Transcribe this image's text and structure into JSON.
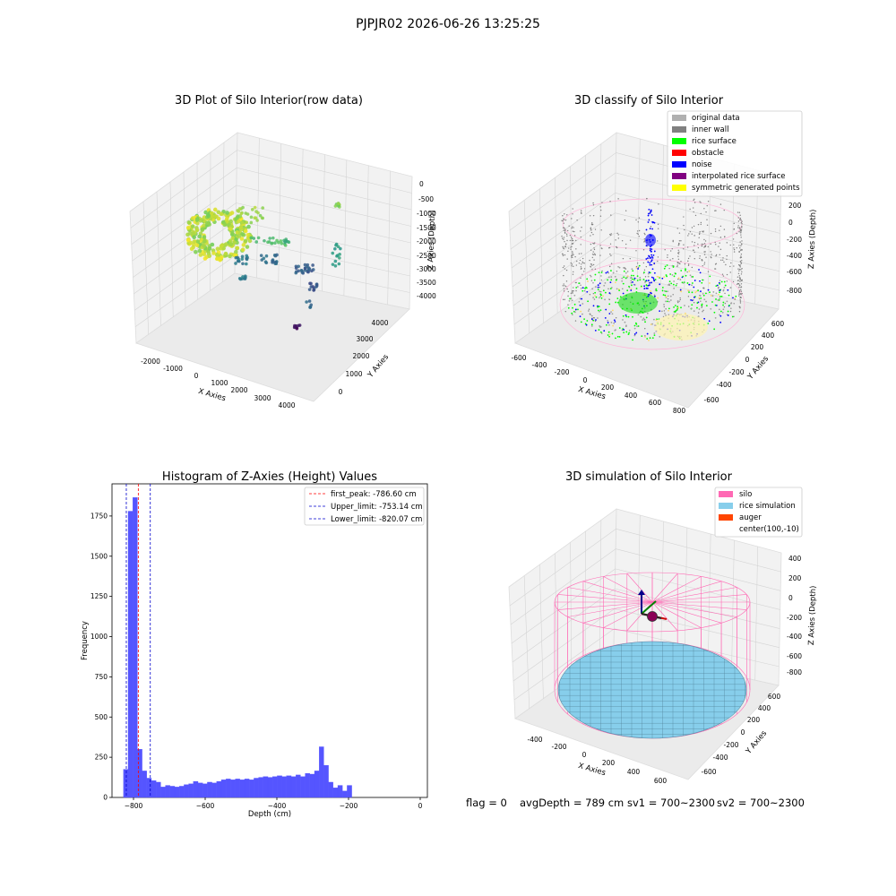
{
  "suptitle": "PJPJR02 2026-06-26 13:25:25",
  "status": {
    "flag": "flag = 0",
    "avg_depth": "avgDepth = 789 cm",
    "sv1": "sv1 = 700~2300",
    "sv2": "sv2 = 700~2300"
  },
  "colors": {
    "hist_bar": "#5555ff",
    "peak_line": "#ff0000",
    "limit_line": "#0000cc",
    "silo": "#ff69b4",
    "rice_sim": "#87ceeb",
    "auger": "#ff4500"
  },
  "chart_data": [
    {
      "type": "scatter3d",
      "title": "3D Plot of Silo Interior(row data)",
      "xlabel": "X Axies",
      "ylabel": "Y Axies",
      "zlabel": "Z Axies (Depth)",
      "x_ticks": [
        "-2000",
        "-1000",
        "0",
        "1000",
        "2000",
        "3000",
        "4000"
      ],
      "y_ticks": [
        "0",
        "1000",
        "2000",
        "3000",
        "4000"
      ],
      "z_ticks": [
        "0",
        "-500",
        "-1000",
        "-1500",
        "-2000",
        "-2500",
        "-3000",
        "-3500",
        "-4000"
      ],
      "xlim": [
        -2500,
        4500
      ],
      "ylim": [
        -500,
        4500
      ],
      "zlim": [
        -4300,
        200
      ],
      "colormap": "viridis"
    },
    {
      "type": "scatter3d",
      "title": "3D classify of Silo Interior",
      "xlabel": "X Axies",
      "ylabel": "Y Axies",
      "zlabel": "Z Axies (Depth)",
      "x_ticks": [
        "-600",
        "-400",
        "-200",
        "0",
        "200",
        "400",
        "600",
        "800"
      ],
      "y_ticks": [
        "-600",
        "-400",
        "-200",
        "0",
        "200",
        "400",
        "600"
      ],
      "z_ticks": [
        "200",
        "0",
        "-200",
        "-400",
        "-600",
        "-800"
      ],
      "legend": [
        {
          "label": "original data",
          "color": "#b0b0b0"
        },
        {
          "label": "inner wall",
          "color": "#808080"
        },
        {
          "label": "rice surface",
          "color": "#00ff00"
        },
        {
          "label": "obstacle",
          "color": "#ff0000"
        },
        {
          "label": "noise",
          "color": "#0000ff"
        },
        {
          "label": "interpolated rice surface",
          "color": "#800080"
        },
        {
          "label": "symmetric generated points",
          "color": "#ffff00"
        }
      ],
      "legend_loc": "upper right"
    },
    {
      "type": "bar",
      "title": "Histogram of Z-Axies (Height) Values",
      "xlabel": "Depth (cm)",
      "ylabel": "Frequency",
      "xlim": [
        -860,
        20
      ],
      "ylim": [
        0,
        1950
      ],
      "x_ticks": [
        -800,
        -600,
        -400,
        -200,
        0
      ],
      "y_ticks": [
        0,
        250,
        500,
        750,
        1000,
        1250,
        1500,
        1750
      ],
      "bin_start": -828,
      "bin_width": 13,
      "values": [
        175,
        1780,
        1865,
        300,
        165,
        120,
        105,
        95,
        65,
        75,
        70,
        65,
        70,
        80,
        85,
        100,
        90,
        85,
        95,
        90,
        100,
        110,
        115,
        110,
        115,
        110,
        115,
        110,
        120,
        125,
        130,
        125,
        130,
        135,
        130,
        135,
        130,
        140,
        130,
        150,
        145,
        165,
        315,
        200,
        95,
        60,
        75,
        40,
        75
      ],
      "vlines": [
        {
          "x": -786.6,
          "label": "first_peak: -786.60 cm",
          "color": "#ff0000"
        },
        {
          "x": -753.14,
          "label": "Upper_limit: -753.14 cm",
          "color": "#0000cc"
        },
        {
          "x": -820.07,
          "label": "Lower_limit: -820.07 cm",
          "color": "#0000cc"
        }
      ],
      "legend_loc": "upper right"
    },
    {
      "type": "surface3d",
      "title": "3D simulation of Silo Interior",
      "xlabel": "X Axies",
      "ylabel": "Y Axies",
      "zlabel": "Z Axies (Depth)",
      "x_ticks": [
        "-400",
        "-200",
        "0",
        "200",
        "400",
        "600"
      ],
      "y_ticks": [
        "-600",
        "-400",
        "-200",
        "0",
        "200",
        "400",
        "600"
      ],
      "z_ticks": [
        "400",
        "200",
        "0",
        "-200",
        "-400",
        "-600",
        "-800"
      ],
      "legend": [
        {
          "label": "silo",
          "color": "#ff69b4"
        },
        {
          "label": "rice simulation",
          "color": "#87ceeb"
        },
        {
          "label": "auger",
          "color": "#ff4500"
        },
        {
          "label": "center(100,-10)",
          "color": ""
        }
      ],
      "legend_loc": "upper right"
    }
  ]
}
